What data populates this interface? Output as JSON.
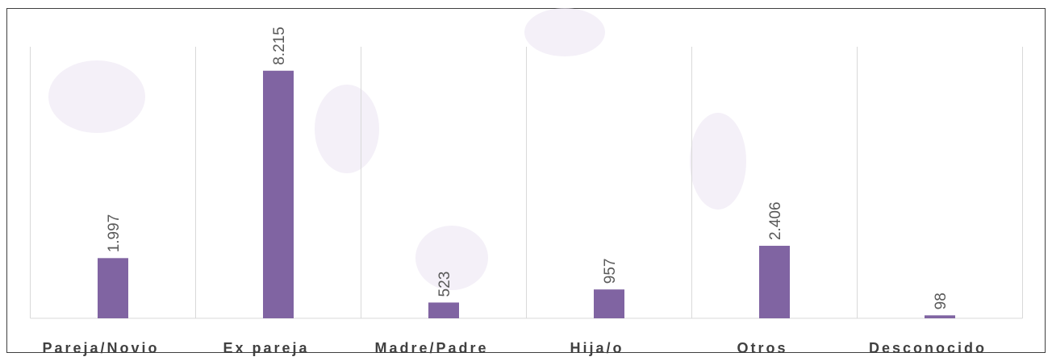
{
  "chart_data": {
    "type": "bar",
    "categories": [
      "Pareja/Novio",
      "Ex pareja",
      "Madre/Padre",
      "Hija/o",
      "Otros",
      "Desconocido"
    ],
    "values": [
      1997,
      8215,
      523,
      957,
      2406,
      98
    ],
    "value_labels": [
      "1.997",
      "8.215",
      "523",
      "957",
      "2.406",
      "98"
    ],
    "color": "#8064a2",
    "ylim": [
      0,
      10000
    ]
  }
}
